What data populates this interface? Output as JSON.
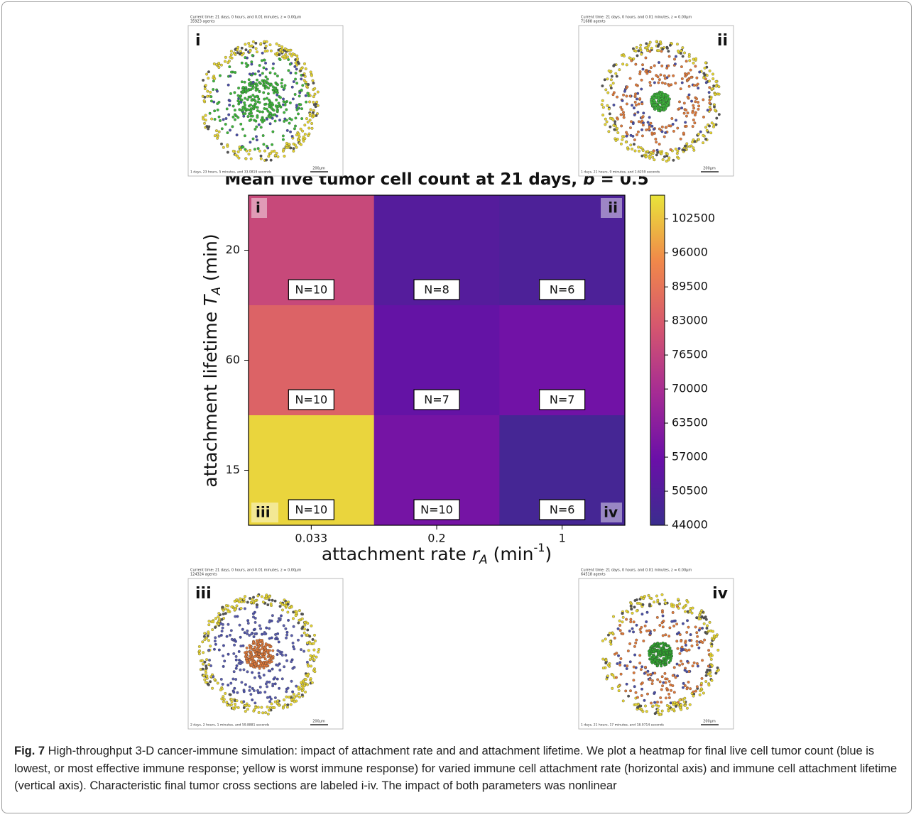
{
  "chart_data": {
    "type": "heatmap",
    "title": [
      "Mean live tumor cell count at 21 days, ",
      "b",
      " = 0.5"
    ],
    "xlabel": [
      "attachment rate ",
      "r",
      "A",
      " (min",
      "-1",
      ")"
    ],
    "ylabel": [
      "attachment lifetime ",
      "T",
      "A",
      " (min)"
    ],
    "categories": [
      "0.033",
      "0.2",
      "1"
    ],
    "y_categories": [
      "20",
      "60",
      "15"
    ],
    "values": [
      [
        78000,
        51000,
        49000
      ],
      [
        85000,
        55000,
        58000
      ],
      [
        105000,
        59000,
        47000
      ]
    ],
    "cell_labels": [
      [
        "N=10",
        "N=8",
        "N=6"
      ],
      [
        "N=10",
        "N=7",
        "N=7"
      ],
      [
        "N=10",
        "N=10",
        "N=6"
      ]
    ],
    "colormap": [
      "#3a2d8e",
      "#6a0fa8",
      "#a52b94",
      "#d5566f",
      "#f0884a",
      "#e9e43a"
    ],
    "zlim": [
      44000,
      107000
    ],
    "zticks": [
      44000,
      50500,
      57000,
      63500,
      70000,
      76500,
      83000,
      89500,
      96000,
      102500
    ]
  },
  "panels": [
    {
      "label": "i",
      "time": "Current time: 21 days, 0 hours, and 0.01 minutes, z = 0.00μm",
      "agents": "35923 agents",
      "elapsed": "1 days, 23 hours, 5 minutes, and 33.0819 seconds",
      "scale": "200μm"
    },
    {
      "label": "ii",
      "time": "Current time: 21 days, 0 hours, and 0.01 minutes, z = 0.00μm",
      "agents": "71688 agents",
      "elapsed": "1 days, 21 hours, 9 minutes, and 1.6259 seconds",
      "scale": "200μm"
    },
    {
      "label": "iii",
      "time": "Current time: 21 days, 0 hours, and 0.01 minutes, z = 0.00μm",
      "agents": "124324 agents",
      "elapsed": "2 days, 2 hours, 1 minutes, and 59.8881 seconds",
      "scale": "200μm"
    },
    {
      "label": "iv",
      "time": "Current time: 21 days, 0 hours, and 0.01 minutes, z = 0.00μm",
      "agents": "64518 agents",
      "elapsed": "1 days, 21 hours, 17 minutes, and 18.0714 seconds",
      "scale": "200μm"
    }
  ],
  "caption": {
    "label": "Fig. 7",
    "text": " High-throughput 3-D cancer-immune simulation: impact of attachment rate and and attachment lifetime. We plot a heatmap for final live cell tumor count (blue is lowest, or most effective immune response; yellow is worst immune response) for varied immune cell attachment rate (horizontal axis) and immune cell attachment lifetime (vertical axis). Characteristic final tumor cross sections are labeled i-iv. The impact of both parameters was nonlinear"
  }
}
